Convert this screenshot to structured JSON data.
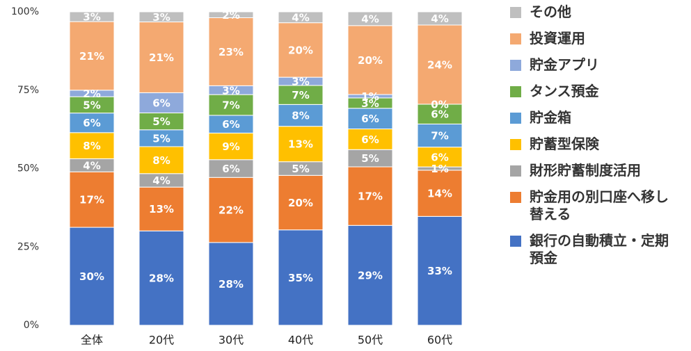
{
  "chart_data": {
    "type": "bar",
    "stacking": "percent",
    "categories": [
      "全体",
      "20代",
      "30代",
      "40代",
      "50代",
      "60代"
    ],
    "ylim": [
      0,
      100
    ],
    "yticks": [
      {
        "value": 0,
        "label": "0%"
      },
      {
        "value": 25,
        "label": "25%"
      },
      {
        "value": 50,
        "label": "50%"
      },
      {
        "value": 75,
        "label": "75%"
      },
      {
        "value": 100,
        "label": "100%"
      }
    ],
    "series": [
      {
        "name": "銀行の自動積立・定期預金",
        "color": "#4472c4",
        "values": [
          30,
          28,
          28,
          35,
          29,
          33
        ],
        "value_labels": [
          "30%",
          "28%",
          "28%",
          "35%",
          "29%",
          "33%"
        ]
      },
      {
        "name": "貯金用の別口座へ移し替える",
        "color": "#ed7d31",
        "values": [
          17,
          13,
          22,
          20,
          17,
          14
        ],
        "value_labels": [
          "17%",
          "13%",
          "22%",
          "20%",
          "17%",
          "14%"
        ]
      },
      {
        "name": "財形貯蓄制度活用",
        "color": "#a5a5a5",
        "values": [
          4,
          4,
          6,
          5,
          5,
          1
        ],
        "value_labels": [
          "4%",
          "4%",
          "6%",
          "5%",
          "5%",
          "1%"
        ]
      },
      {
        "name": "貯蓄型保険",
        "color": "#ffc000",
        "values": [
          8,
          8,
          9,
          13,
          6,
          6
        ],
        "value_labels": [
          "8%",
          "8%",
          "9%",
          "13%",
          "6%",
          "6%"
        ]
      },
      {
        "name": "貯金箱",
        "color": "#5b9bd5",
        "values": [
          6,
          5,
          6,
          8,
          6,
          7
        ],
        "value_labels": [
          "6%",
          "5%",
          "6%",
          "8%",
          "6%",
          "7%"
        ]
      },
      {
        "name": "タンス預金",
        "color": "#70ad47",
        "values": [
          5,
          5,
          7,
          7,
          3,
          6
        ],
        "value_labels": [
          "5%",
          "5%",
          "7%",
          "7%",
          "3%",
          "6%"
        ]
      },
      {
        "name": "貯金アプリ",
        "color": "#8ea9db",
        "values": [
          2,
          6,
          3,
          3,
          1,
          0
        ],
        "value_labels": [
          "2%",
          "6%",
          "3%",
          "3%",
          "1%",
          "0%"
        ]
      },
      {
        "name": "投資運用",
        "color": "#f4a971",
        "values": [
          21,
          21,
          23,
          20,
          20,
          24
        ],
        "value_labels": [
          "21%",
          "21%",
          "23%",
          "20%",
          "20%",
          "24%"
        ]
      },
      {
        "name": "その他",
        "color": "#bfbfbf",
        "values": [
          3,
          3,
          2,
          4,
          4,
          4
        ],
        "value_labels": [
          "3%",
          "3%",
          "2%",
          "4%",
          "4%",
          "4%"
        ]
      }
    ]
  }
}
